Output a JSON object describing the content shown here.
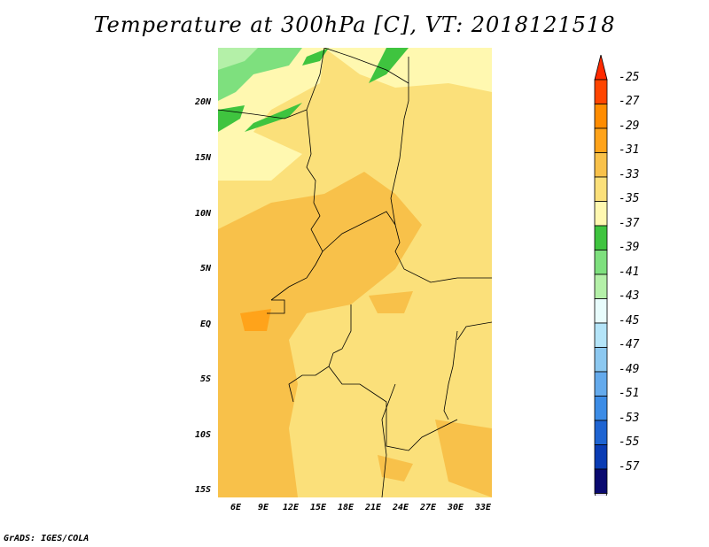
{
  "title": "Temperature at 300hPa [C], VT: 2018121518",
  "footer": "GrADS: IGES/COLA",
  "map": {
    "lat_labels": [
      "20N",
      "15N",
      "10N",
      "5N",
      "EQ",
      "5S",
      "10S",
      "15S"
    ],
    "lon_labels": [
      "6E",
      "9E",
      "12E",
      "15E",
      "18E",
      "21E",
      "24E",
      "27E",
      "30E",
      "33E"
    ]
  },
  "colorbar": {
    "labels": [
      "-25",
      "-27",
      "-29",
      "-31",
      "-33",
      "-35",
      "-37",
      "-39",
      "-41",
      "-43",
      "-45",
      "-47",
      "-49",
      "-51",
      "-53",
      "-55",
      "-57"
    ],
    "colors": [
      "#ff4500",
      "#ff8c00",
      "#ffa31a",
      "#f8c14a",
      "#fbe07a",
      "#fff8b0",
      "#3fc43f",
      "#7ee07e",
      "#b4f0a8",
      "#e8fcfc",
      "#b4e4f8",
      "#8cc8f0",
      "#64aaec",
      "#3c8ce6",
      "#1e64d2",
      "#0a3cb4",
      "#0a0a70"
    ],
    "over_color": "#ff2a00",
    "under_color": "#e0dcf8"
  }
}
